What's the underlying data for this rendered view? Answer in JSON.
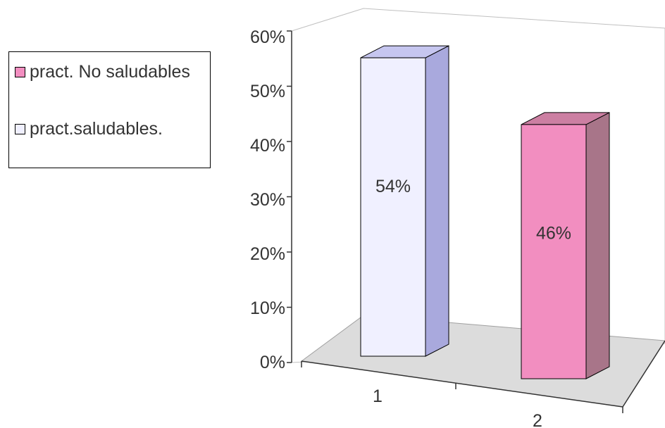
{
  "chart_data": {
    "type": "bar",
    "categories": [
      "1",
      "2"
    ],
    "series": [
      {
        "name": "pract.saludables.",
        "color": "#f0f0ff",
        "values": [
          54,
          null
        ]
      },
      {
        "name": "pract. No saludables",
        "color": "#f28ec0",
        "values": [
          null,
          46
        ]
      }
    ],
    "data_labels": [
      "54%",
      "46%"
    ],
    "yticks": [
      "0%",
      "10%",
      "20%",
      "30%",
      "40%",
      "50%",
      "60%"
    ],
    "ylim": [
      0,
      60
    ],
    "grid": false,
    "style": "3d",
    "legend_position": "left"
  },
  "legend": [
    {
      "label": "pract. No saludables",
      "color": "#f28ec0"
    },
    {
      "label": "pract.saludables.",
      "color": "#f0f0ff"
    }
  ]
}
